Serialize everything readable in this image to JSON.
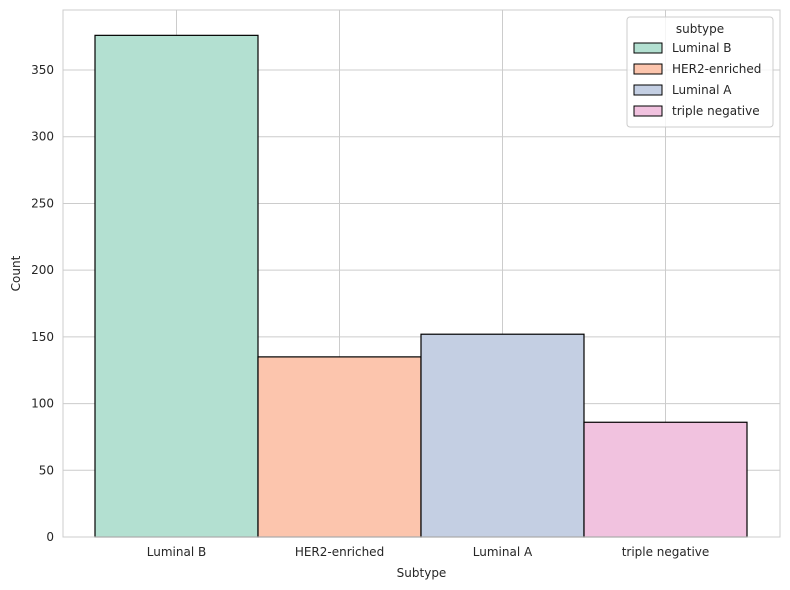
{
  "chart_data": {
    "type": "bar",
    "categories": [
      "Luminal B",
      "HER2-enriched",
      "Luminal A",
      "triple negative"
    ],
    "values": [
      376,
      135,
      152,
      86
    ],
    "xlabel": "Subtype",
    "ylabel": "Count",
    "ylim": [
      0,
      395
    ],
    "yticks": [
      0,
      50,
      100,
      150,
      200,
      250,
      300,
      350
    ],
    "grid": true,
    "legend": {
      "title": "subtype",
      "placement": "top-right",
      "entries": [
        "Luminal B",
        "HER2-enriched",
        "Luminal A",
        "triple negative"
      ]
    },
    "colors": [
      "#b3e0d1",
      "#fcc5ad",
      "#c4cfe3",
      "#f1c2df"
    ],
    "edge_color": "#000000",
    "grid_color": "#cccccc"
  }
}
